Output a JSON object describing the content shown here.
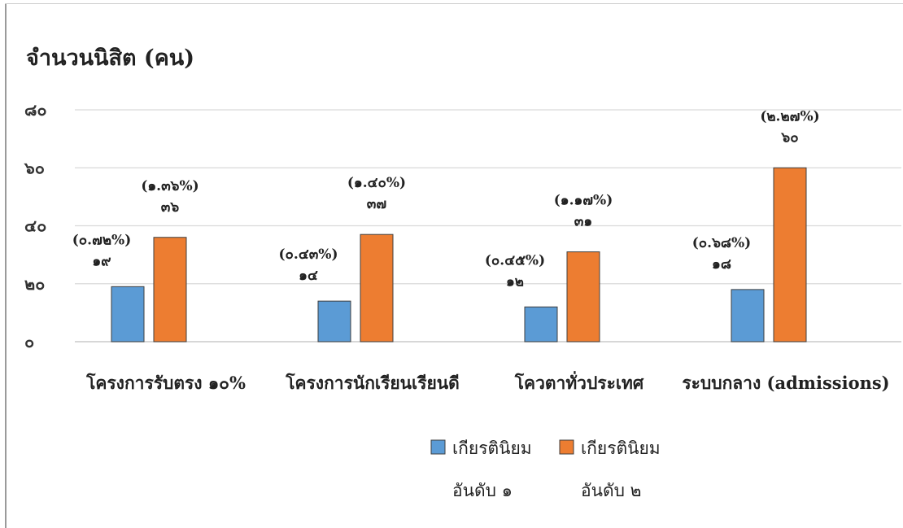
{
  "chart_data": {
    "type": "bar",
    "ylabel": "จำนวนนิสิต (คน)",
    "ylim": [
      0,
      80
    ],
    "yticks": [
      0,
      20,
      40,
      60,
      80
    ],
    "ytick_labels": [
      "๐",
      "๒๐",
      "๔๐",
      "๖๐",
      "๘๐"
    ],
    "grid": true,
    "legend_position": "bottom",
    "categories": [
      "โครงการรับตรง ๑๐%",
      "โครงการนักเรียนเรียนดี",
      "โควตาทั่วประเทศ",
      "ระบบกลาง (admissions)"
    ],
    "series": [
      {
        "name_line1": "เกียรตินิยม",
        "name_line2": "อันดับ ๑",
        "color": "#5b9bd5",
        "values": [
          19,
          14,
          12,
          18
        ],
        "value_labels": [
          "๑๙",
          "๑๔",
          "๑๒",
          "๑๘"
        ],
        "percent_labels": [
          "(๐.๗๒%)",
          "(๐.๔๓%)",
          "(๐.๔๕%)",
          "(๐.๖๘%)"
        ]
      },
      {
        "name_line1": "เกียรตินิยม",
        "name_line2": "อันดับ ๒",
        "color": "#ed7d31",
        "values": [
          36,
          37,
          31,
          60
        ],
        "value_labels": [
          "๓๖",
          "๓๗",
          "๓๑",
          "๖๐"
        ],
        "percent_labels": [
          "(๑.๓๖%)",
          "(๑.๔๐%)",
          "(๑.๑๗%)",
          "(๒.๒๗%)"
        ]
      }
    ]
  }
}
